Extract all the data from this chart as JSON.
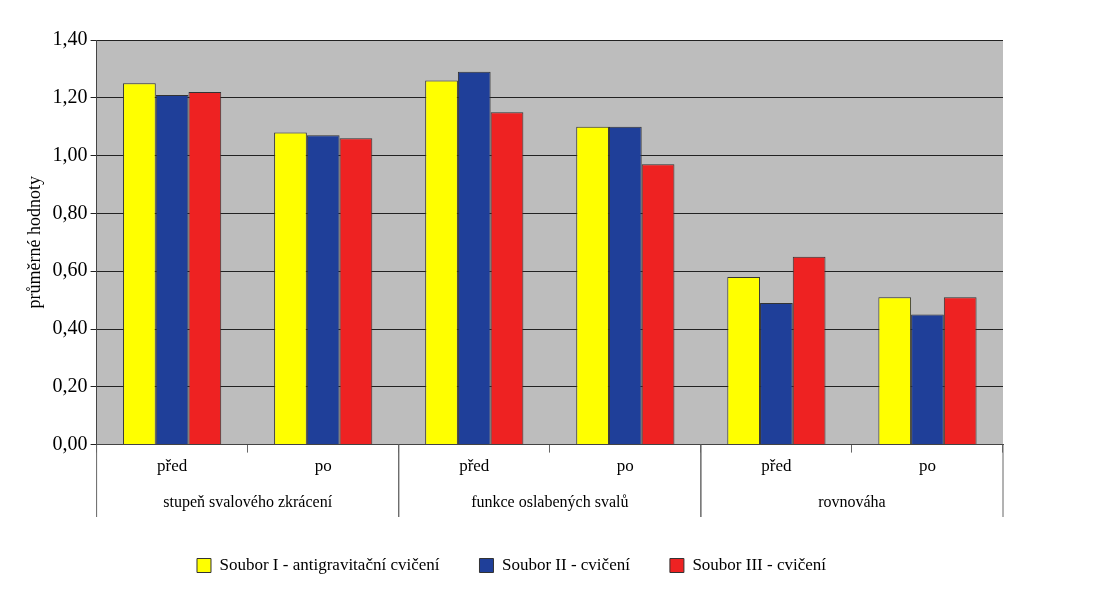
{
  "chart_data": {
    "type": "bar",
    "ylabel": "průměrné hodnoty",
    "categories": [
      "před",
      "po",
      "před",
      "po",
      "před",
      "po"
    ],
    "annotations": [
      "stupeň svalového zkrácení",
      "funkce oslabených svalů",
      "rovnováha"
    ],
    "series": [
      {
        "name": "Soubor I - antigravitační cvičení",
        "color": "#ffff00",
        "values": [
          1.25,
          1.08,
          1.26,
          1.1,
          0.58,
          0.51
        ]
      },
      {
        "name": "Soubor II - cvičení",
        "color": "#1f3f99",
        "values": [
          1.21,
          1.07,
          1.29,
          1.1,
          0.49,
          0.45
        ]
      },
      {
        "name": "Soubor III - cvičení",
        "color": "#ee2222",
        "values": [
          1.22,
          1.06,
          1.15,
          0.97,
          0.65,
          0.51
        ]
      }
    ],
    "ylim": [
      0,
      1.4
    ],
    "yticks": [
      {
        "value": 0,
        "label": "0,00"
      },
      {
        "value": 0.2,
        "label": "0,20"
      },
      {
        "value": 0.4,
        "label": "0,40"
      },
      {
        "value": 0.6,
        "label": "0,60"
      },
      {
        "value": 0.8,
        "label": "0,80"
      },
      {
        "value": 1,
        "label": "1,00"
      },
      {
        "value": 1.2,
        "label": "1,20"
      },
      {
        "value": 1.4,
        "label": "1,40"
      }
    ],
    "grid": "y",
    "legend": "bottom"
  }
}
